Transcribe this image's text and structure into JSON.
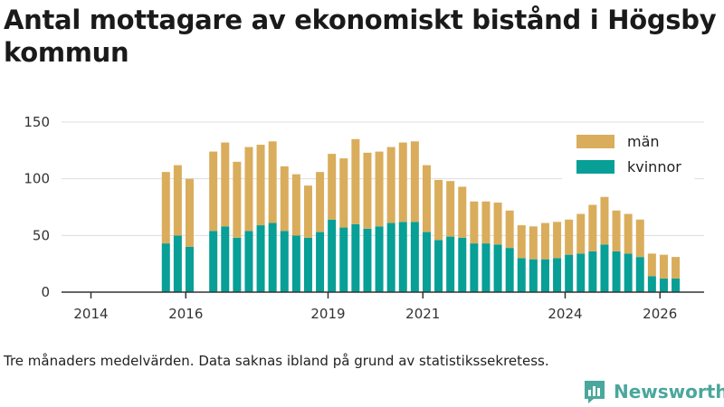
{
  "chart_data": {
    "type": "bar",
    "stacked": true,
    "title": "Antal mottagare av ekonomiskt bistånd i Högsby kommun",
    "note": "Tre månaders medelvärden. Data saknas ibland på grund av statistikssekretess.",
    "xlabel": "",
    "ylabel": "",
    "ylim": [
      0,
      150
    ],
    "yticks": [
      0,
      50,
      100,
      150
    ],
    "xticks": [
      {
        "label": "2014",
        "t": 2014.0
      },
      {
        "label": "2016",
        "t": 2016.0
      },
      {
        "label": "2019",
        "t": 2019.0
      },
      {
        "label": "2021",
        "t": 2021.0
      },
      {
        "label": "2024",
        "t": 2024.0
      },
      {
        "label": "2026",
        "t": 2026.0
      }
    ],
    "legend_position": "top-right",
    "series": [
      {
        "name": "män",
        "color": "#d9ad5c",
        "values": [
          63,
          62,
          60,
          70,
          74,
          67,
          74,
          71,
          72,
          57,
          54,
          46,
          53,
          58,
          61,
          75,
          67,
          66,
          67,
          70,
          71,
          59,
          53,
          49,
          45,
          37,
          37,
          37,
          33,
          29,
          29,
          32,
          32,
          31,
          35,
          41,
          42,
          36,
          35,
          33,
          20,
          21,
          19
        ]
      },
      {
        "name": "kvinnor",
        "color": "#079f96",
        "values": [
          43,
          50,
          40,
          54,
          58,
          48,
          54,
          59,
          61,
          54,
          50,
          48,
          53,
          64,
          57,
          60,
          56,
          58,
          61,
          62,
          62,
          53,
          46,
          49,
          48,
          43,
          43,
          42,
          39,
          30,
          29,
          29,
          30,
          33,
          34,
          36,
          42,
          36,
          34,
          31,
          14,
          12,
          12
        ]
      }
    ],
    "x": [
      2015.58,
      2015.83,
      2016.08,
      2016.58,
      2016.83,
      2017.08,
      2017.33,
      2017.58,
      2017.83,
      2018.08,
      2018.33,
      2018.58,
      2018.83,
      2019.08,
      2019.33,
      2019.58,
      2019.83,
      2020.08,
      2020.33,
      2020.58,
      2020.83,
      2021.08,
      2021.33,
      2021.58,
      2021.83,
      2022.08,
      2022.33,
      2022.58,
      2022.83,
      2023.08,
      2023.33,
      2023.58,
      2023.83,
      2024.08,
      2024.33,
      2024.58,
      2024.83,
      2025.08,
      2025.33,
      2025.58,
      2025.83,
      2026.08,
      2026.33
    ]
  },
  "legend": [
    "män",
    "kvinnor"
  ],
  "brand": {
    "name": "Newsworthy",
    "color": "#4aa79c"
  },
  "colors": {
    "background": "#ffffff",
    "grid": "#dddddd",
    "axis": "#333333"
  }
}
